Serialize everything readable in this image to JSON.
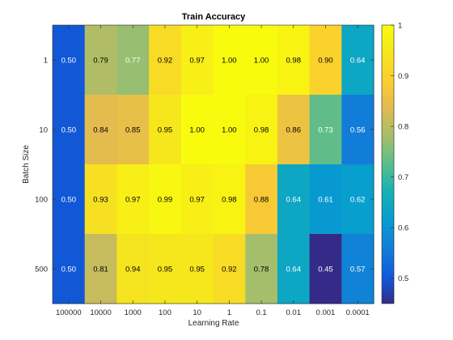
{
  "chart_data": {
    "type": "heatmap",
    "title": "Train Accuracy",
    "xlabel": "Learning Rate",
    "ylabel": "Batch Size",
    "x_categories": [
      "100000",
      "10000",
      "1000",
      "100",
      "10",
      "1",
      "0.1",
      "0.01",
      "0.001",
      "0.0001"
    ],
    "y_categories": [
      "1",
      "10",
      "100",
      "500"
    ],
    "values": [
      [
        0.5,
        0.79,
        0.77,
        0.92,
        0.97,
        1.0,
        1.0,
        0.98,
        0.9,
        0.64
      ],
      [
        0.5,
        0.84,
        0.85,
        0.95,
        1.0,
        1.0,
        0.98,
        0.86,
        0.73,
        0.56
      ],
      [
        0.5,
        0.93,
        0.97,
        0.99,
        0.97,
        0.98,
        0.88,
        0.64,
        0.61,
        0.62
      ],
      [
        0.5,
        0.81,
        0.94,
        0.95,
        0.95,
        0.92,
        0.78,
        0.64,
        0.45,
        0.57
      ]
    ],
    "colorbar": {
      "min": 0.45,
      "max": 1.0,
      "ticks": [
        "0.5",
        "0.6",
        "0.7",
        "0.8",
        "0.9",
        "1"
      ],
      "colormap": "parula"
    }
  }
}
